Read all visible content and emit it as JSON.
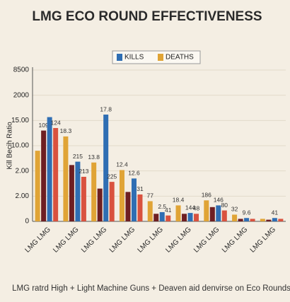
{
  "chart_data": {
    "type": "bar",
    "title": "LMG ECO ROUND EFFECTIVENESS",
    "y_label": "Kill Becih Ratio",
    "footer": "LMG ratrd High + Light Machine Guns + Deaven aid denvirse on Eco Rounds",
    "categories": [
      "LMG LMG",
      "LMG LMG",
      "LMG LMG",
      "LMG LMG",
      "LMG LMG",
      "LMG LMG",
      "LMG LMG",
      "LMG LMG",
      "LMG LMG"
    ],
    "series": [
      {
        "name": "DEATHS",
        "color": "#e0a436",
        "values": [
          8.4,
          10.1,
          7.0,
          6.1,
          2.4,
          1.9,
          2.5,
          0.8,
          0.3
        ],
        "annotations": [
          null,
          "18.3",
          "13.8",
          "12.4",
          "77",
          "18.4",
          "186",
          "32",
          null
        ]
      },
      {
        "color": "#6e1f22",
        "values": [
          10.8,
          6.7,
          3.9,
          3.5,
          0.9,
          0.9,
          1.7,
          0.3,
          0.2
        ],
        "annotations": [
          "109",
          null,
          null,
          null,
          null,
          null,
          null,
          null,
          null
        ]
      },
      {
        "name": "KILLS",
        "color": "#2f6eb3",
        "values": [
          12.4,
          7.1,
          12.7,
          5.1,
          1.1,
          1.0,
          1.9,
          0.4,
          0.4
        ],
        "annotations": [
          null,
          "215",
          "17.8",
          "12.6",
          "2.5",
          "144",
          "146",
          "9.6",
          "41"
        ]
      },
      {
        "color": "#d9523f",
        "values": [
          11.1,
          5.3,
          4.7,
          3.2,
          0.7,
          0.9,
          1.3,
          0.3,
          0.3
        ],
        "annotations": [
          "124",
          "213",
          "225",
          "31",
          "41",
          "48",
          "80",
          null,
          null
        ]
      }
    ],
    "ylim": [
      0,
      18
    ],
    "yticks": [
      0,
      {
        "value": 3,
        "label": "2.00"
      },
      {
        "value": 6,
        "label": "2.00"
      },
      {
        "value": 9,
        "label": "10.00"
      },
      {
        "value": 12,
        "label": "15.00"
      },
      {
        "value": 15,
        "label": "2000"
      },
      {
        "value": 18,
        "label": "8500"
      }
    ],
    "grid": true,
    "legend": "top"
  }
}
